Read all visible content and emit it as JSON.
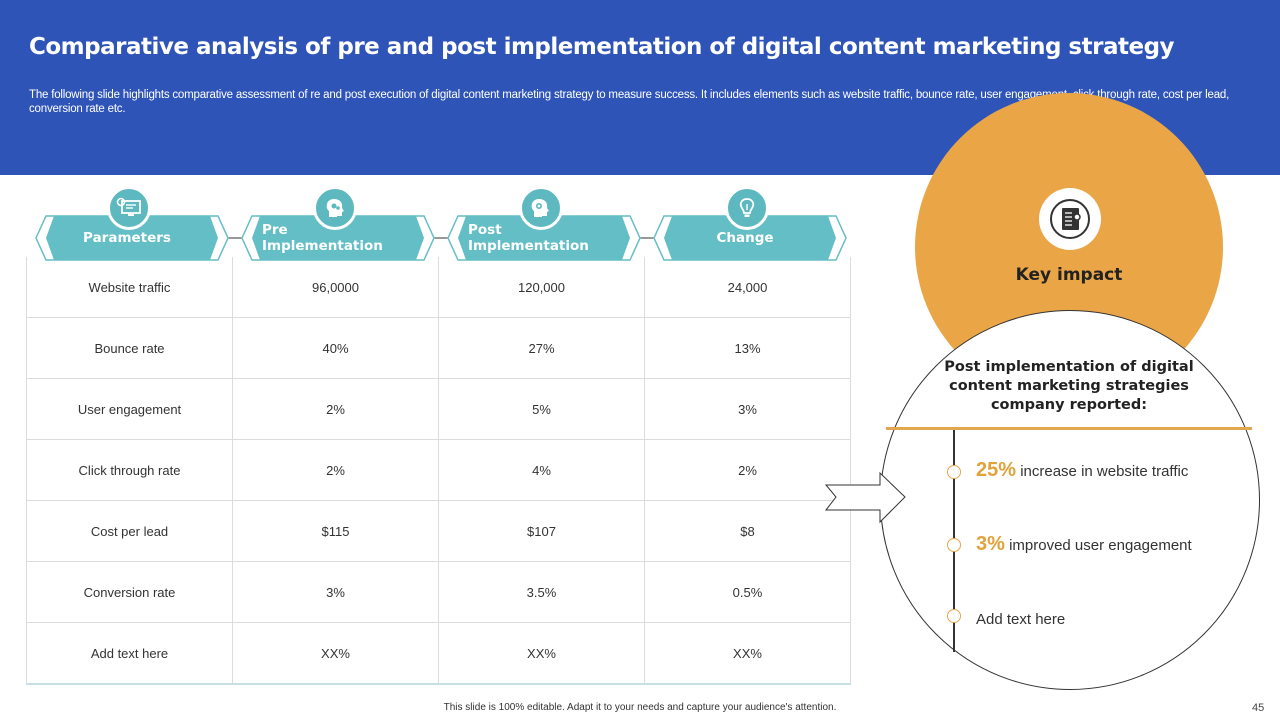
{
  "header": {
    "title": "Comparative analysis of pre and post implementation of digital content marketing strategy",
    "subtitle": "The following slide highlights comparative assessment of re and post execution of digital content marketing strategy to measure success. It includes elements such as website traffic, bounce rate, user engagement, click through rate, cost per lead, conversion rate etc."
  },
  "table": {
    "columns": [
      "Parameters",
      "Pre Implementation",
      "Post Implementation",
      "Change"
    ],
    "column_icons": [
      "monitor-gear-icon",
      "head-gears-icon",
      "head-bulb-icon",
      "lightbulb-icon"
    ],
    "rows": [
      [
        "Website traffic",
        "96,0000",
        "120,000",
        "24,000"
      ],
      [
        "Bounce rate",
        "40%",
        "27%",
        "13%"
      ],
      [
        "User engagement",
        "2%",
        "5%",
        "3%"
      ],
      [
        "Click through rate",
        "2%",
        "4%",
        "2%"
      ],
      [
        "Cost per lead",
        "$115",
        "$107",
        "$8"
      ],
      [
        "Conversion  rate",
        "3%",
        "3.5%",
        "0.5%"
      ],
      [
        "Add text here",
        "XX%",
        "XX%",
        "XX%"
      ]
    ]
  },
  "impact": {
    "title": "Key impact",
    "icon": "notebook-icon",
    "statement": "Post implementation of digital content marketing strategies company reported:",
    "points": [
      {
        "highlight": "25%",
        "text": " increase in website traffic"
      },
      {
        "highlight": "3%",
        "text": " improved user engagement"
      },
      {
        "highlight": "",
        "text": "Add text here"
      }
    ]
  },
  "footer": {
    "note": "This slide is 100% editable. Adapt it to your needs and capture your audience's attention.",
    "page": "45"
  },
  "colors": {
    "header_bg": "#2f54b8",
    "teal": "#64bec5",
    "orange": "#eaa646"
  }
}
